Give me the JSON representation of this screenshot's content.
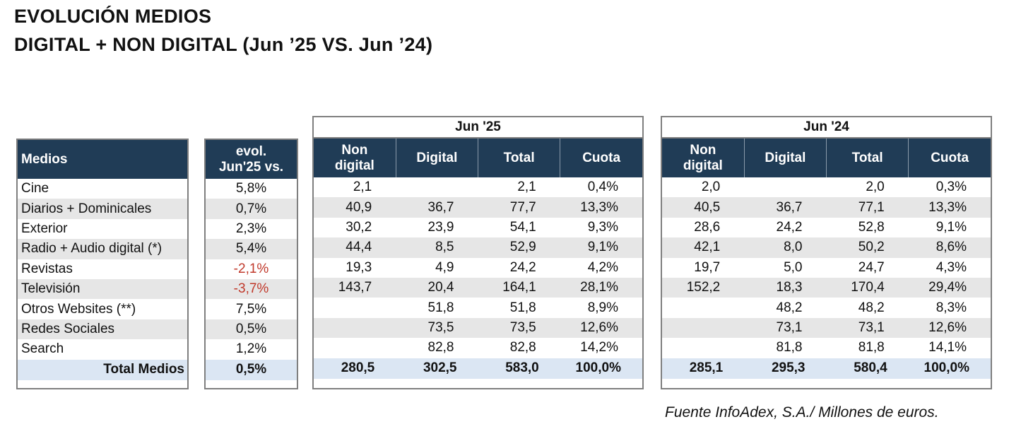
{
  "title": {
    "line1": "EVOLUCIÓN MEDIOS",
    "line2": "DIGITAL + NON DIGITAL (Jun ’25 VS. Jun ’24)"
  },
  "table": {
    "medios_header": "Medios",
    "evol_header_line1": "evol.",
    "evol_header_line2": "Jun'25 vs.",
    "periods": [
      {
        "label": "Jun '25",
        "columns": [
          {
            "line1": "Non",
            "line2": "digital"
          },
          {
            "line1": "Digital",
            "line2": ""
          },
          {
            "line1": "Total",
            "line2": ""
          },
          {
            "line1": "Cuota",
            "line2": ""
          }
        ]
      },
      {
        "label": "Jun '24",
        "columns": [
          {
            "line1": "Non",
            "line2": "digital"
          },
          {
            "line1": "Digital",
            "line2": ""
          },
          {
            "line1": "Total",
            "line2": ""
          },
          {
            "line1": "Cuota",
            "line2": ""
          }
        ]
      }
    ],
    "rows": [
      {
        "medio": "Cine",
        "evol": "5,8%",
        "neg": false,
        "y25": [
          "2,1",
          "",
          "2,1",
          "0,4%"
        ],
        "y24": [
          "2,0",
          "",
          "2,0",
          "0,3%"
        ]
      },
      {
        "medio": "Diarios + Dominicales",
        "evol": "0,7%",
        "neg": false,
        "y25": [
          "40,9",
          "36,7",
          "77,7",
          "13,3%"
        ],
        "y24": [
          "40,5",
          "36,7",
          "77,1",
          "13,3%"
        ]
      },
      {
        "medio": "Exterior",
        "evol": "2,3%",
        "neg": false,
        "y25": [
          "30,2",
          "23,9",
          "54,1",
          "9,3%"
        ],
        "y24": [
          "28,6",
          "24,2",
          "52,8",
          "9,1%"
        ]
      },
      {
        "medio": "Radio + Audio digital (*)",
        "evol": "5,4%",
        "neg": false,
        "y25": [
          "44,4",
          "8,5",
          "52,9",
          "9,1%"
        ],
        "y24": [
          "42,1",
          "8,0",
          "50,2",
          "8,6%"
        ]
      },
      {
        "medio": "Revistas",
        "evol": "-2,1%",
        "neg": true,
        "y25": [
          "19,3",
          "4,9",
          "24,2",
          "4,2%"
        ],
        "y24": [
          "19,7",
          "5,0",
          "24,7",
          "4,3%"
        ]
      },
      {
        "medio": "Televisión",
        "evol": "-3,7%",
        "neg": true,
        "y25": [
          "143,7",
          "20,4",
          "164,1",
          "28,1%"
        ],
        "y24": [
          "152,2",
          "18,3",
          "170,4",
          "29,4%"
        ]
      },
      {
        "medio": "Otros Websites (**)",
        "evol": "7,5%",
        "neg": false,
        "y25": [
          "",
          "51,8",
          "51,8",
          "8,9%"
        ],
        "y24": [
          "",
          "48,2",
          "48,2",
          "8,3%"
        ]
      },
      {
        "medio": "Redes Sociales",
        "evol": "0,5%",
        "neg": false,
        "y25": [
          "",
          "73,5",
          "73,5",
          "12,6%"
        ],
        "y24": [
          "",
          "73,1",
          "73,1",
          "12,6%"
        ]
      },
      {
        "medio": "Search",
        "evol": "1,2%",
        "neg": false,
        "y25": [
          "",
          "82,8",
          "82,8",
          "14,2%"
        ],
        "y24": [
          "",
          "81,8",
          "81,8",
          "14,1%"
        ]
      }
    ],
    "total": {
      "medio": "Total Medios",
      "evol": "0,5%",
      "y25": [
        "280,5",
        "302,5",
        "583,0",
        "100,0%"
      ],
      "y24": [
        "285,1",
        "295,3",
        "580,4",
        "100,0%"
      ]
    }
  },
  "colors": {
    "header_bg": "#203c56",
    "total_bg": "#dbe6f3",
    "negative": "#c0392b",
    "stripe": "#e6e6e6"
  },
  "source": "Fuente InfoAdex, S.A./ Millones de euros."
}
